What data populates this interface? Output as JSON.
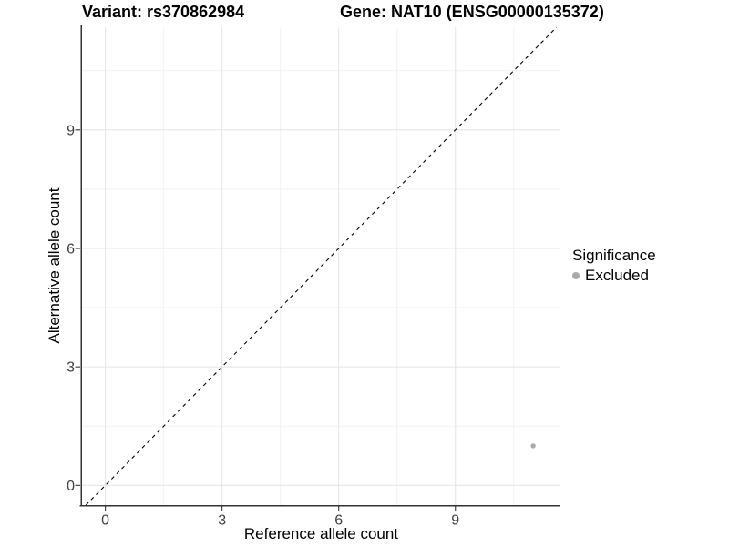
{
  "chart_data": {
    "type": "scatter",
    "titles": {
      "left": "Variant: rs370862984",
      "right": "Gene: NAT10 (ENSG00000135372)"
    },
    "xlabel": "Reference allele count",
    "ylabel": "Alternative allele count",
    "xlim": [
      -0.6,
      11.7
    ],
    "ylim": [
      -0.5,
      11.6
    ],
    "xticks": [
      0,
      3,
      6,
      9
    ],
    "yticks": [
      0,
      3,
      6,
      9
    ],
    "xminor": [
      1.5,
      4.5,
      7.5,
      10.5
    ],
    "yminor": [
      1.5,
      4.5,
      7.5,
      10.5
    ],
    "grid": "major+minor",
    "grid_major_color": "#e4e4e4",
    "grid_minor_color": "#f2f2f2",
    "axis_color": "#333333",
    "tick_label_color": "#404040",
    "reference_line": {
      "type": "identity y=x",
      "style": "dashed",
      "color": "#000000"
    },
    "series": [
      {
        "name": "Excluded",
        "color": "#a9a9a9",
        "points": [
          {
            "x": 11,
            "y": 1
          }
        ]
      }
    ],
    "legend": {
      "title": "Significance",
      "position": "right",
      "entries": [
        {
          "label": "Excluded",
          "color": "#a9a9a9"
        }
      ]
    }
  }
}
